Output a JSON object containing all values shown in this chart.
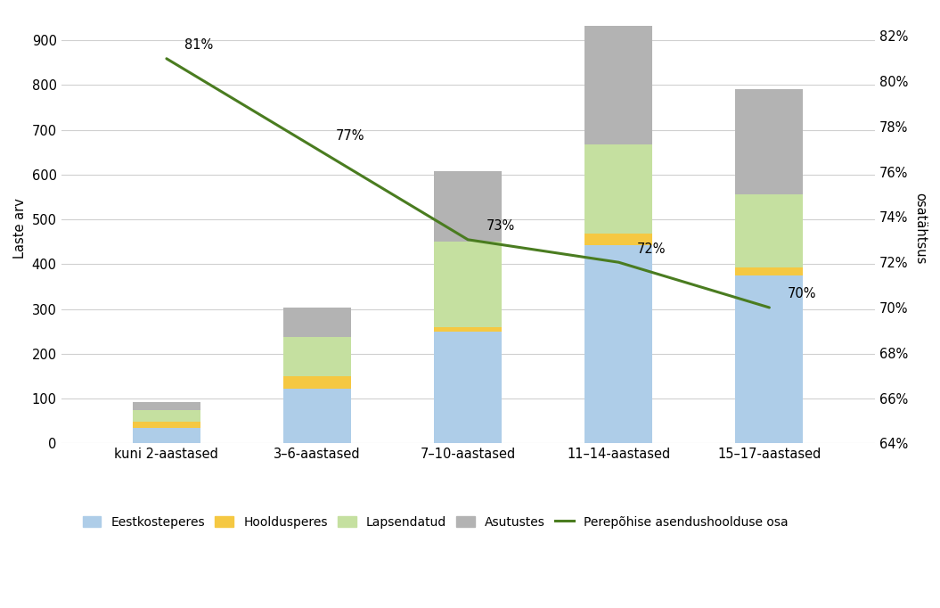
{
  "categories": [
    "kuni 2-aastased",
    "3–6-aastased",
    "7–10-aastased",
    "11–14-aastased",
    "15–17-aastased"
  ],
  "eestkosteperes": [
    35,
    122,
    250,
    443,
    375
  ],
  "hooldusperes": [
    13,
    28,
    10,
    25,
    18
  ],
  "lapsendatud": [
    27,
    88,
    190,
    200,
    162
  ],
  "asutustes": [
    18,
    65,
    157,
    265,
    235
  ],
  "line_values": [
    81,
    77,
    73,
    72,
    70
  ],
  "line_labels": [
    "81%",
    "77%",
    "73%",
    "72%",
    "70%"
  ],
  "colors": {
    "eestkosteperes": "#aecde8",
    "hooldusperes": "#f5c842",
    "lapsendatud": "#c5e0a0",
    "asutustes": "#b3b3b3"
  },
  "line_color": "#4a7c20",
  "ylabel_left": "Laste arv",
  "ylabel_right": "osatähtsus",
  "ylim_left": [
    0,
    960
  ],
  "ylim_right": [
    64,
    83
  ],
  "yticks_left": [
    0,
    100,
    200,
    300,
    400,
    500,
    600,
    700,
    800,
    900
  ],
  "yticks_right": [
    64,
    66,
    68,
    70,
    72,
    74,
    76,
    78,
    80,
    82
  ],
  "legend_labels": [
    "Eestkosteperes",
    "Hooldusperes",
    "Lapsendatud",
    "Asutustes",
    "Perepõhise asendushoolduse osa"
  ],
  "background_color": "#ffffff",
  "gridcolor": "#d0d0d0",
  "tick_fontsize": 10.5,
  "legend_fontsize": 10,
  "bar_width": 0.45
}
